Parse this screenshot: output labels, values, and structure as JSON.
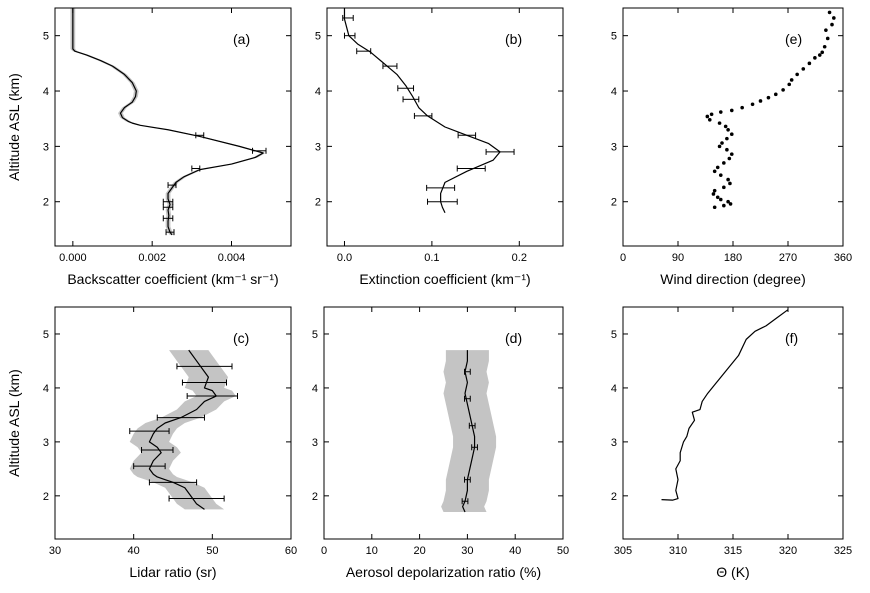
{
  "chart_data": [
    {
      "id": "a",
      "type": "line",
      "panel_label": "(a)",
      "xlabel": "Backscatter coefficient (km⁻¹ sr⁻¹)",
      "ylabel": "Altitude ASL (km)",
      "xlim": [
        -0.00045,
        0.0055
      ],
      "ylim": [
        1.2,
        5.5
      ],
      "xticks": [
        0.0,
        0.002,
        0.004
      ],
      "xtick_labels": [
        "0.000",
        "0.002",
        "0.004"
      ],
      "yticks": [
        2,
        3,
        4,
        5
      ],
      "ytick_labels": [
        "2",
        "3",
        "4",
        "5"
      ],
      "band": true,
      "band_halfwidth": 6e-05,
      "series": [
        {
          "x": [
            0.0,
            0.0,
            0.0,
            0.0,
            0.0,
            0.0,
            5e-05,
            0.00035,
            0.0007,
            0.001,
            0.0013,
            0.0015,
            0.0016,
            0.00158,
            0.0015,
            0.0013,
            0.0012,
            0.00125,
            0.0014,
            0.0015,
            0.0017,
            0.0024,
            0.0032,
            0.0042,
            0.0048,
            0.0046,
            0.004,
            0.0032,
            0.0028,
            0.0026,
            0.0025,
            0.0024,
            0.0024,
            0.00245,
            0.0024,
            0.00242,
            0.0024,
            0.0024,
            0.00245,
            0.0025
          ],
          "y": [
            5.5,
            5.3,
            5.1,
            5.0,
            4.9,
            4.76,
            4.72,
            4.65,
            4.55,
            4.45,
            4.3,
            4.15,
            4.0,
            3.9,
            3.8,
            3.7,
            3.6,
            3.52,
            3.45,
            3.42,
            3.38,
            3.3,
            3.18,
            3.0,
            2.88,
            2.8,
            2.68,
            2.58,
            2.45,
            2.35,
            2.25,
            2.15,
            2.05,
            1.95,
            1.85,
            1.75,
            1.65,
            1.55,
            1.45,
            1.4
          ]
        }
      ],
      "errorbars": [
        {
          "x": 0.0032,
          "y": 3.2,
          "err": 0.0001
        },
        {
          "x": 0.0047,
          "y": 2.92,
          "err": 0.00017
        },
        {
          "x": 0.0031,
          "y": 2.6,
          "err": 0.0001
        },
        {
          "x": 0.0025,
          "y": 2.3,
          "err": 0.0001
        },
        {
          "x": 0.0024,
          "y": 2.0,
          "err": 0.00012
        },
        {
          "x": 0.0024,
          "y": 1.9,
          "err": 0.00012
        },
        {
          "x": 0.0024,
          "y": 1.7,
          "err": 0.00012
        },
        {
          "x": 0.00245,
          "y": 1.45,
          "err": 0.0001
        }
      ]
    },
    {
      "id": "b",
      "type": "line",
      "panel_label": "(b)",
      "xlabel": "Extinction coefficient (km⁻¹)",
      "ylabel": "",
      "xlim": [
        -0.02,
        0.25
      ],
      "ylim": [
        1.2,
        5.5
      ],
      "xticks": [
        0.0,
        0.1,
        0.2
      ],
      "xtick_labels": [
        "0.0",
        "0.1",
        "0.2"
      ],
      "yticks": [
        2,
        3,
        4,
        5
      ],
      "ytick_labels": [
        "2",
        "3",
        "4",
        "5"
      ],
      "band": false,
      "series": [
        {
          "x": [
            0.0,
            0.0,
            0.005,
            0.015,
            0.03,
            0.045,
            0.06,
            0.07,
            0.078,
            0.085,
            0.095,
            0.115,
            0.14,
            0.165,
            0.178,
            0.17,
            0.14,
            0.115,
            0.11,
            0.11,
            0.112,
            0.115
          ],
          "y": [
            5.5,
            5.3,
            5.0,
            4.85,
            4.7,
            4.5,
            4.3,
            4.1,
            3.9,
            3.7,
            3.55,
            3.35,
            3.2,
            3.05,
            2.9,
            2.75,
            2.55,
            2.35,
            2.15,
            2.0,
            1.9,
            1.8
          ]
        }
      ],
      "errorbars": [
        {
          "x": 0.004,
          "y": 5.32,
          "err": 0.006
        },
        {
          "x": 0.006,
          "y": 5.0,
          "err": 0.006
        },
        {
          "x": 0.022,
          "y": 4.72,
          "err": 0.008
        },
        {
          "x": 0.052,
          "y": 4.45,
          "err": 0.008
        },
        {
          "x": 0.07,
          "y": 4.05,
          "err": 0.009
        },
        {
          "x": 0.076,
          "y": 3.85,
          "err": 0.009
        },
        {
          "x": 0.09,
          "y": 3.55,
          "err": 0.01
        },
        {
          "x": 0.14,
          "y": 3.2,
          "err": 0.01
        },
        {
          "x": 0.178,
          "y": 2.9,
          "err": 0.016
        },
        {
          "x": 0.145,
          "y": 2.6,
          "err": 0.016
        },
        {
          "x": 0.11,
          "y": 2.25,
          "err": 0.016
        },
        {
          "x": 0.112,
          "y": 2.0,
          "err": 0.017
        }
      ]
    },
    {
      "id": "e",
      "type": "scatter",
      "panel_label": "(e)",
      "xlabel": "Wind direction (degree)",
      "ylabel": "",
      "xlim": [
        0,
        360
      ],
      "ylim": [
        1.2,
        5.5
      ],
      "xticks": [
        0,
        90,
        180,
        270,
        360
      ],
      "xtick_labels": [
        "0",
        "90",
        "180",
        "270",
        "360"
      ],
      "yticks": [
        2,
        3,
        4,
        5
      ],
      "ytick_labels": [
        "2",
        "3",
        "4",
        "5"
      ],
      "series": [
        {
          "x": [
            338,
            345,
            342,
            332,
            335,
            330,
            326,
            322,
            314,
            305,
            295,
            285,
            276,
            272,
            262,
            250,
            238,
            225,
            212,
            195,
            178,
            160,
            145,
            138,
            142,
            158,
            168,
            172,
            178,
            170,
            162,
            158,
            170,
            178,
            174,
            165,
            155,
            150,
            160,
            172,
            175,
            165,
            150,
            148,
            155,
            160,
            172,
            176,
            165,
            150
          ],
          "y": [
            5.42,
            5.32,
            5.2,
            5.1,
            4.95,
            4.8,
            4.7,
            4.65,
            4.6,
            4.5,
            4.4,
            4.3,
            4.2,
            4.12,
            4.02,
            3.94,
            3.88,
            3.82,
            3.76,
            3.7,
            3.65,
            3.62,
            3.58,
            3.54,
            3.48,
            3.42,
            3.36,
            3.3,
            3.22,
            3.14,
            3.06,
            3.0,
            2.94,
            2.86,
            2.78,
            2.7,
            2.62,
            2.55,
            2.48,
            2.4,
            2.33,
            2.26,
            2.2,
            2.14,
            2.08,
            2.04,
            2.0,
            1.96,
            1.93,
            1.9
          ]
        }
      ]
    },
    {
      "id": "c",
      "type": "line",
      "panel_label": "(c)",
      "xlabel": "Lidar ratio (sr)",
      "ylabel": "Altitude ASL (km)",
      "xlim": [
        30,
        60
      ],
      "ylim": [
        1.2,
        5.5
      ],
      "xticks": [
        30,
        40,
        50,
        60
      ],
      "xtick_labels": [
        "30",
        "40",
        "50",
        "60"
      ],
      "yticks": [
        2,
        3,
        4,
        5
      ],
      "ytick_labels": [
        "2",
        "3",
        "4",
        "5"
      ],
      "band": true,
      "band_halfwidth": 2.5,
      "series": [
        {
          "x": [
            47,
            48,
            49,
            49.5,
            49,
            50,
            50.5,
            49,
            48,
            46,
            44,
            43,
            42.5,
            42,
            43,
            43.5,
            42.5,
            42,
            42.5,
            43,
            44,
            45,
            46.5,
            47,
            47.5,
            48,
            49
          ],
          "y": [
            4.7,
            4.5,
            4.3,
            4.2,
            4.0,
            3.95,
            3.85,
            3.75,
            3.6,
            3.45,
            3.35,
            3.25,
            3.15,
            3.0,
            2.9,
            2.8,
            2.65,
            2.5,
            2.4,
            2.35,
            2.3,
            2.25,
            2.15,
            2.05,
            1.95,
            1.85,
            1.75
          ]
        }
      ],
      "errorbars": [
        {
          "x": 49,
          "y": 4.4,
          "err": 3.5
        },
        {
          "x": 49,
          "y": 4.1,
          "err": 2.8
        },
        {
          "x": 50,
          "y": 3.85,
          "err": 3.2
        },
        {
          "x": 46,
          "y": 3.45,
          "err": 3.0
        },
        {
          "x": 42,
          "y": 3.2,
          "err": 2.5
        },
        {
          "x": 43,
          "y": 2.85,
          "err": 2.0
        },
        {
          "x": 42,
          "y": 2.55,
          "err": 2.0
        },
        {
          "x": 45,
          "y": 2.25,
          "err": 3.0
        },
        {
          "x": 48,
          "y": 1.95,
          "err": 3.5
        }
      ]
    },
    {
      "id": "d",
      "type": "line",
      "panel_label": "(d)",
      "xlabel": "Aerosol depolarization ratio (%)",
      "ylabel": "",
      "xlim": [
        0,
        50
      ],
      "ylim": [
        1.2,
        5.5
      ],
      "xticks": [
        0,
        10,
        20,
        30,
        40,
        50
      ],
      "xtick_labels": [
        "0",
        "10",
        "20",
        "30",
        "40",
        "50"
      ],
      "yticks": [
        2,
        3,
        4,
        5
      ],
      "ytick_labels": [
        "2",
        "3",
        "4",
        "5"
      ],
      "band": true,
      "band_halfwidth": 4.5,
      "series": [
        {
          "x": [
            30,
            30,
            29.5,
            30,
            29.5,
            30,
            30.5,
            31,
            31.5,
            31.5,
            31,
            30.5,
            30,
            30,
            29.5,
            29,
            29.5
          ],
          "y": [
            4.7,
            4.5,
            4.3,
            4.1,
            3.9,
            3.7,
            3.5,
            3.3,
            3.1,
            2.9,
            2.7,
            2.5,
            2.3,
            2.1,
            1.9,
            1.8,
            1.7
          ]
        }
      ],
      "errorbars": [
        {
          "x": 30,
          "y": 4.3,
          "err": 0.6
        },
        {
          "x": 30,
          "y": 3.8,
          "err": 0.6
        },
        {
          "x": 31,
          "y": 3.3,
          "err": 0.6
        },
        {
          "x": 31.5,
          "y": 2.9,
          "err": 0.6
        },
        {
          "x": 30,
          "y": 2.3,
          "err": 0.6
        },
        {
          "x": 29.5,
          "y": 1.9,
          "err": 0.6
        }
      ]
    },
    {
      "id": "f",
      "type": "line",
      "panel_label": "(f)",
      "xlabel": "Θ (K)",
      "ylabel": "",
      "xlim": [
        305,
        325
      ],
      "ylim": [
        1.2,
        5.5
      ],
      "xticks": [
        305,
        310,
        315,
        320,
        325
      ],
      "xtick_labels": [
        "305",
        "310",
        "315",
        "320",
        "325"
      ],
      "yticks": [
        2,
        3,
        4,
        5
      ],
      "ytick_labels": [
        "2",
        "3",
        "4",
        "5"
      ],
      "band": false,
      "series": [
        {
          "x": [
            308.5,
            309.5,
            310,
            309.8,
            310,
            309.8,
            310.2,
            310.2,
            310.5,
            310.8,
            311,
            311.5,
            311.3,
            312,
            312.2,
            312.7,
            313.5,
            314.5,
            315.5,
            316.2,
            317,
            318,
            319,
            320
          ],
          "y": [
            1.93,
            1.92,
            1.95,
            2.1,
            2.3,
            2.5,
            2.65,
            2.8,
            3.0,
            3.1,
            3.25,
            3.4,
            3.55,
            3.6,
            3.75,
            3.9,
            4.1,
            4.35,
            4.6,
            4.9,
            5.05,
            5.15,
            5.3,
            5.45
          ]
        }
      ]
    }
  ]
}
